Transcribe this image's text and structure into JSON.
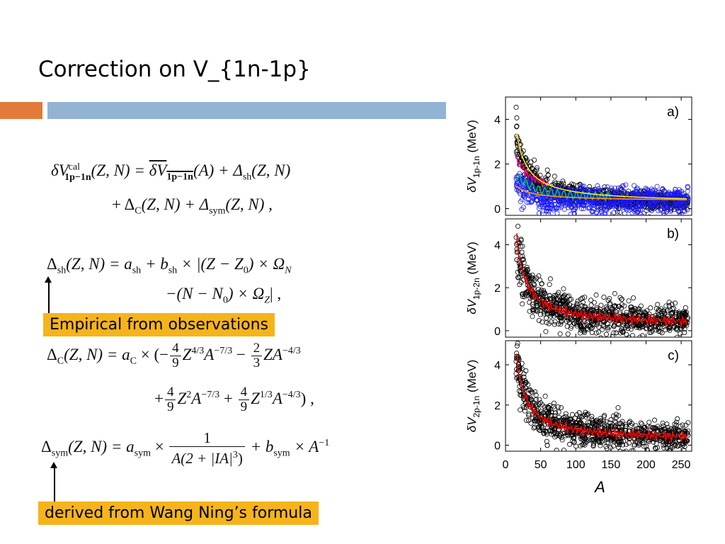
{
  "slide": {
    "title": "Correction on V_{1n-1p}"
  },
  "equations": {
    "eq1_lhs": "δV",
    "eq1_sup": "cal",
    "eq1_sub": "1p−1n",
    "eq1_args": "(Z, N) =",
    "eq1_bar": "δV",
    "eq1_bar_sub": "1p−1n",
    "eq1_rest": "(A) + Δ",
    "eq1_sh": "sh",
    "eq1_end": "(Z, N)",
    "eq2_a": "+ Δ",
    "eq2_c": "C",
    "eq2_b": "(Z, N) + Δ",
    "eq2_sym": "sym",
    "eq2_end": "(Z, N) ,",
    "sh_line1": "Δ",
    "sh_sub": "sh",
    "sh_rest": "(Z, N)  =  a",
    "sh_a_sub": "sh",
    "sh_rest2": " + b",
    "sh_b_sub": "sh",
    "sh_rest3": " × |(Z − Z",
    "sh_z0": "0",
    "sh_rest4": ") × Ω",
    "sh_n": "N",
    "sh_line2": "−(N − N",
    "sh_n0": "0",
    "sh_line2b": ") × Ω",
    "sh_z": "Z",
    "sh_line2c": "| ,",
    "c_lhs": "Δ",
    "c_sub": "C",
    "c_rest": "(Z, N)  =  a",
    "c_a_sub": "C",
    "c_times": " × (−",
    "c_f1_num": "4",
    "c_f1_den": "9",
    "c_t1": "Z",
    "c_t1_exp": "4/3",
    "c_t1b": "A",
    "c_t1b_exp": "−7/3",
    "c_minus": " − ",
    "c_f2_num": "2",
    "c_f2_den": "3",
    "c_t2": "ZA",
    "c_t2_exp": "−4/3",
    "c2_plus": "+",
    "c2_f1_num": "4",
    "c2_f1_den": "9",
    "c2_t1": "Z",
    "c2_t1_exp": "2",
    "c2_t1b": "A",
    "c2_t1b_exp": "−7/3",
    "c2_plus2": " + ",
    "c2_f2_num": "4",
    "c2_f2_den": "9",
    "c2_t2": "Z",
    "c2_t2_exp": "1/3",
    "c2_t2b": "A",
    "c2_t2b_exp": "−4/3",
    "c2_end": ") ,",
    "sym_lhs": "Δ",
    "sym_sub": "sym",
    "sym_rest": "(Z, N)  =  a",
    "sym_a_sub": "sym",
    "sym_times": " × ",
    "sym_num": "1",
    "sym_den": "A(2 + |IA|",
    "sym_den_exp": "3",
    "sym_den_end": ")",
    "sym_plus": " + b",
    "sym_b_sub": "sym",
    "sym_end": " × A",
    "sym_end_exp": "−1"
  },
  "labels": {
    "empirical": "Empirical from observations",
    "derived": "derived from Wang Ning’s formula"
  },
  "colors": {
    "orange_bar": "#e07b3c",
    "blue_bar": "#93b3d4",
    "label_bg": "#f5b41b"
  },
  "chart_data": [
    {
      "type": "scatter",
      "panel_label": "a)",
      "ylabel": "δV_{1p-1n} (MeV)",
      "ylim": [
        -0.3,
        5.0
      ],
      "yticks": [
        "0",
        "2",
        "4"
      ],
      "xlim": [
        0,
        265
      ],
      "series": [
        {
          "color": "#000000",
          "style": "open-circles"
        },
        {
          "color": "#1a1aff",
          "style": "open-circles"
        },
        {
          "color": "#e6007e",
          "style": "line"
        },
        {
          "color": "#00c060",
          "style": "line"
        },
        {
          "color": "#ffe81a",
          "style": "line"
        },
        {
          "color": "#ff9a00",
          "style": "line"
        }
      ]
    },
    {
      "type": "scatter",
      "panel_label": "b)",
      "ylabel": "δV_{1p-2n} (MeV)",
      "ylim": [
        -0.3,
        5.2
      ],
      "yticks": [
        "0",
        "2",
        "4"
      ],
      "xlim": [
        0,
        265
      ],
      "series": [
        {
          "color": "#000000",
          "style": "open-circles"
        },
        {
          "color": "#ff0000",
          "style": "line"
        }
      ]
    },
    {
      "type": "scatter",
      "panel_label": "c)",
      "ylabel": "δV_{2p-1n} (MeV)",
      "xlabel": "A",
      "ylim": [
        -0.3,
        5.2
      ],
      "yticks": [
        "0",
        "2",
        "4"
      ],
      "xticks": [
        "0",
        "50",
        "100",
        "150",
        "200",
        "250"
      ],
      "xlim": [
        0,
        265
      ],
      "series": [
        {
          "color": "#000000",
          "style": "open-circles"
        },
        {
          "color": "#ff0000",
          "style": "line"
        }
      ]
    }
  ]
}
